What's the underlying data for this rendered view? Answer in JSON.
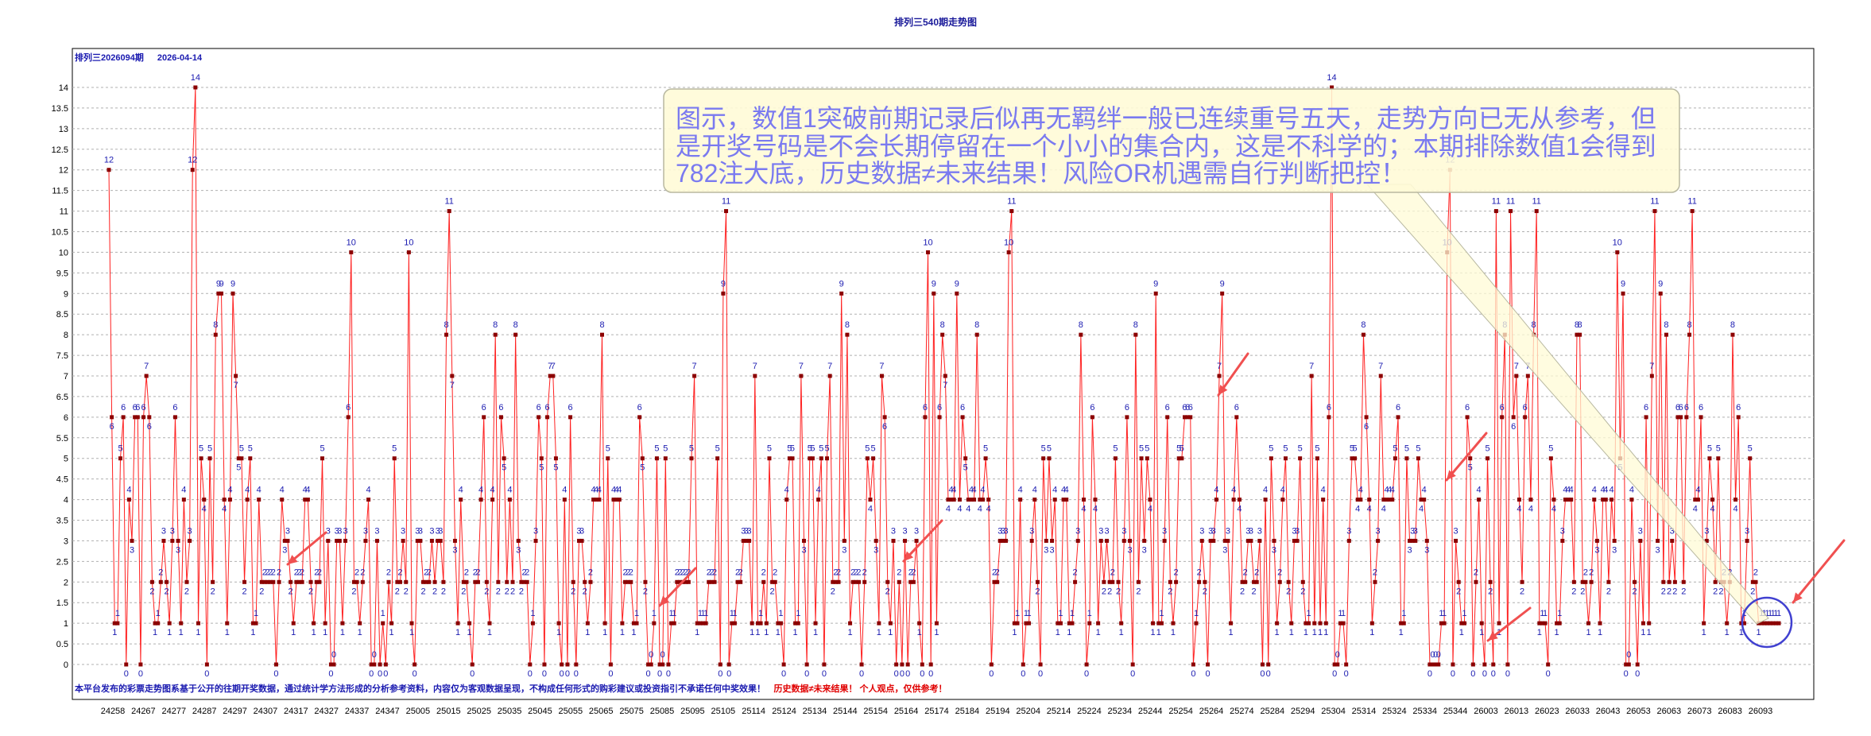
{
  "page": {
    "title": "排列三540期走势图",
    "issue": "排列三2026094期",
    "date": "2026-04-14",
    "disclaimer": "本平台发布的彩票走势图系基于公开的往期开奖数据，通过统计学方法形成的分析参考资料，内容仅为客观数据呈现，不构成任何形式的购彩建议或投资指引不承诺任何中奖效果！",
    "disclaimer_red": "历史数据≠未来结果！ 个人观点，仅供参考！"
  },
  "annotation": {
    "lines": [
      "图示，数值1突破前期记录后似再无羁绊一般已连续重号五天，走势方向已无从参考，但",
      "是开奖号码是不会长期停留在一个小小的集合内，这是不科学的；本期排除数值1会得到",
      "782注大底，历史数据≠未来结果！风险OR机遇需自行判断把控！"
    ]
  },
  "colors": {
    "line": "#ff2020",
    "point": "#8b0000",
    "label": "#1a1ab0",
    "arrow": "#f05050",
    "note_bg": "#fffbd6",
    "note_text": "#7a7af0",
    "circle": "#4040d0"
  },
  "chart_data": {
    "type": "line",
    "y_range": [
      0,
      14
    ],
    "y_ticks": [
      "0",
      "0.5",
      "1",
      "1.5",
      "2",
      "2.5",
      "3",
      "3.5",
      "4",
      "4.5",
      "5",
      "5.5",
      "6",
      "6.5",
      "7",
      "7.5",
      "8",
      "8.5",
      "9",
      "9.5",
      "10",
      "10.5",
      "11",
      "11.5",
      "12",
      "12.5",
      "13",
      "13.5",
      "14"
    ],
    "x_labels": [
      "24258",
      "24267",
      "24277",
      "24287",
      "24297",
      "24307",
      "24317",
      "24327",
      "24337",
      "24347",
      "25005",
      "25015",
      "25025",
      "25035",
      "25045",
      "25055",
      "25065",
      "25075",
      "25085",
      "25095",
      "25105",
      "25114",
      "25124",
      "25134",
      "25144",
      "25154",
      "25164",
      "25174",
      "25184",
      "25194",
      "25204",
      "25214",
      "25224",
      "25234",
      "25244",
      "25254",
      "25264",
      "25274",
      "25284",
      "25294",
      "25304",
      "25314",
      "25324",
      "25334",
      "25344",
      "26003",
      "26013",
      "26023",
      "26033",
      "26043",
      "26053",
      "26063",
      "26073",
      "26083",
      "26093"
    ],
    "grid": "horizontal dashed",
    "series": [
      {
        "values": [
          12,
          6,
          1,
          1,
          5,
          6,
          0,
          4,
          3,
          6,
          6,
          0,
          6,
          7,
          6,
          2,
          1,
          1,
          2,
          3,
          2,
          1,
          3,
          6,
          3,
          1,
          4,
          2,
          3,
          12,
          14,
          1,
          5,
          4,
          0,
          5,
          2,
          8,
          9,
          9,
          4,
          1,
          4,
          9,
          7,
          5,
          5,
          2,
          4,
          5,
          1,
          1,
          4,
          2,
          2,
          2,
          2,
          2,
          0,
          2,
          4,
          3,
          3,
          2,
          1,
          2,
          2,
          2,
          4,
          4,
          2,
          1,
          2,
          2,
          5,
          1,
          3,
          0,
          0,
          3,
          3,
          1,
          3,
          6,
          10,
          2,
          2,
          1,
          2,
          3,
          4,
          0,
          0,
          3,
          0,
          1,
          0,
          2,
          1,
          5,
          2,
          2,
          3,
          2,
          10,
          1,
          0,
          3,
          3,
          2,
          2,
          2,
          3,
          2,
          3,
          3,
          2,
          8,
          11,
          7,
          3,
          1,
          4,
          2,
          2,
          1,
          0,
          2,
          2,
          4,
          6,
          2,
          1,
          4,
          8,
          2,
          6,
          5,
          2,
          4,
          2,
          8,
          3,
          2,
          2,
          2,
          0,
          1,
          3,
          6,
          5,
          0,
          6,
          7,
          7,
          5,
          1,
          0,
          4,
          0,
          6,
          2,
          0,
          3,
          3,
          2,
          1,
          2,
          4,
          4,
          4,
          8,
          1,
          5,
          0,
          4,
          4,
          4,
          1,
          2,
          2,
          2,
          1,
          1,
          6,
          5,
          2,
          0,
          0,
          1,
          5,
          0,
          0,
          5,
          0,
          1,
          1,
          2,
          2,
          2,
          2,
          2,
          5,
          7,
          1,
          1,
          1,
          1,
          2,
          2,
          2,
          5,
          0,
          9,
          11,
          0,
          1,
          1,
          2,
          2,
          3,
          3,
          3,
          1,
          7,
          1,
          1,
          2,
          1,
          5,
          2,
          2,
          1,
          1,
          0,
          4,
          5,
          5,
          1,
          1,
          7,
          3,
          0,
          5,
          5,
          1,
          4,
          5,
          0,
          5,
          7,
          2,
          2,
          2,
          9,
          3,
          8,
          1,
          2,
          2,
          2,
          0,
          2,
          5,
          4,
          5,
          3,
          1,
          7,
          6,
          2,
          1,
          3,
          0,
          2,
          0,
          3,
          0,
          2,
          2,
          3,
          1,
          0,
          6,
          10,
          0,
          9,
          1,
          6,
          8,
          7,
          4,
          4,
          4,
          9,
          4,
          6,
          5,
          4,
          4,
          4,
          8,
          4,
          4,
          5,
          4,
          0,
          2,
          2,
          3,
          3,
          3,
          10,
          11,
          1,
          1,
          4,
          0,
          1,
          1,
          3,
          4,
          2,
          0,
          5,
          3,
          5,
          3,
          4,
          1,
          1,
          4,
          4,
          1,
          1,
          2,
          3,
          8,
          4,
          0,
          1,
          6,
          4,
          1,
          3,
          2,
          3,
          2,
          2,
          5,
          2,
          1,
          3,
          6,
          3,
          0,
          8,
          2,
          5,
          3,
          5,
          4,
          1,
          9,
          1,
          1,
          3,
          6,
          2,
          1,
          2,
          5,
          5,
          6,
          6,
          6,
          0,
          1,
          2,
          3,
          2,
          0,
          3,
          3,
          4,
          7,
          9,
          3,
          3,
          1,
          4,
          6,
          4,
          2,
          2,
          3,
          3,
          2,
          2,
          3,
          0,
          4,
          0,
          5,
          3,
          1,
          2,
          4,
          5,
          2,
          1,
          3,
          3,
          5,
          2,
          1,
          1,
          7,
          1,
          5,
          1,
          4,
          1,
          6,
          14,
          0,
          0,
          1,
          1,
          0,
          3,
          5,
          5,
          4,
          4,
          8,
          6,
          4,
          1,
          2,
          3,
          7,
          4,
          4,
          4,
          4,
          5,
          6,
          1,
          1,
          5,
          3,
          3,
          3,
          5,
          4,
          4,
          3,
          0,
          0,
          0,
          0,
          1,
          1,
          10,
          12,
          0,
          3,
          2,
          1,
          1,
          6,
          5,
          0,
          2,
          4,
          1,
          0,
          5,
          2,
          0,
          11,
          1,
          6,
          8,
          0,
          11,
          6,
          7,
          4,
          2,
          6,
          7,
          4,
          8,
          11,
          1,
          1,
          1,
          0,
          5,
          4,
          1,
          1,
          3,
          4,
          4,
          4,
          2,
          8,
          8,
          2,
          2,
          1,
          2,
          4,
          3,
          1,
          4,
          4,
          2,
          4,
          3,
          10,
          5,
          9,
          0,
          0,
          4,
          2,
          0,
          3,
          1,
          6,
          1,
          7,
          11,
          3,
          9,
          2,
          8,
          2,
          3,
          2,
          6,
          6,
          2,
          6,
          8,
          11,
          4,
          4,
          6,
          1,
          3,
          5,
          4,
          2,
          5,
          2,
          2,
          1,
          2,
          8,
          4,
          6,
          1,
          1,
          3,
          5,
          2,
          2,
          1,
          1,
          1,
          1,
          1,
          1,
          1,
          1
        ]
      }
    ],
    "data_labels_omitted": "each point is labeled with its value in the original chart"
  }
}
